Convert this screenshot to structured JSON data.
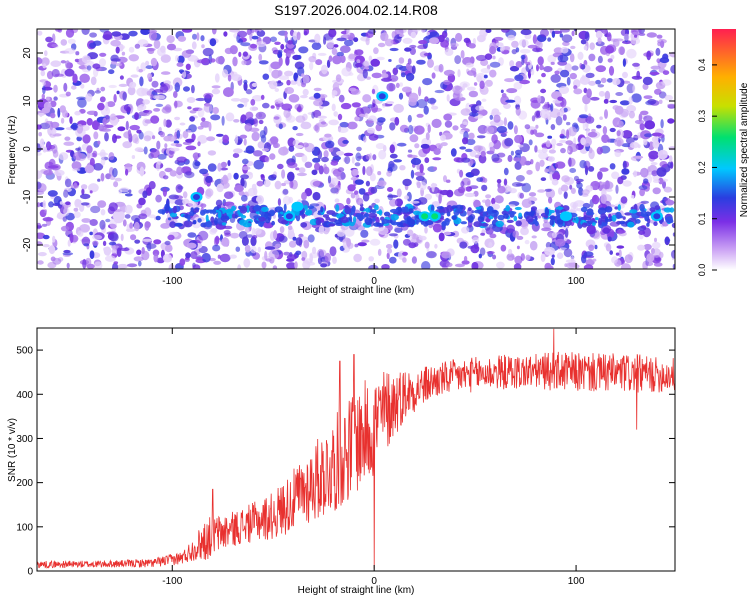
{
  "figure_title": "S197.2026.004.02.14.R08",
  "colors": {
    "snr_line": "#e8312f",
    "axis": "#000000"
  },
  "chart_data": [
    {
      "type": "heatmap",
      "name": "spectrogram",
      "title": "S197.2026.004.02.14.R08",
      "xlabel": "Height of straight line (km)",
      "ylabel": "Frequency (Hz)",
      "xlim": [
        -167,
        149
      ],
      "ylim": [
        -25,
        25
      ],
      "xticks": [
        -100,
        0,
        100
      ],
      "xtick_labels": [
        "-100",
        "0",
        "100"
      ],
      "yticks": [
        20,
        10,
        0,
        -10,
        -20
      ],
      "ytick_labels": [
        "20",
        "10",
        "0",
        "-10",
        "-20"
      ],
      "colorbar": {
        "label": "Normalized spectral amplitude",
        "range": [
          0,
          0.47
        ],
        "ticks": [
          0,
          0.1,
          0.2,
          0.3,
          0.4
        ],
        "tick_labels": [
          "0.0",
          "0.1",
          "0.2",
          "0.3",
          "0.4"
        ],
        "colormap": [
          "#ffffff",
          "#7b2fe6",
          "#2a3ee0",
          "#00c8ff",
          "#00e070",
          "#c8e000",
          "#ffb000",
          "#ff2050"
        ]
      },
      "signal_band_hz": -14,
      "hotspots": [
        {
          "x": -38,
          "y": -12,
          "value": 0.22
        },
        {
          "x": -42,
          "y": -14,
          "value": 0.12
        },
        {
          "x": 25,
          "y": -14,
          "value": 0.26
        },
        {
          "x": 30,
          "y": -14,
          "value": 0.28
        },
        {
          "x": 95,
          "y": -14,
          "value": 0.2
        },
        {
          "x": 140,
          "y": -14,
          "value": 0.14
        },
        {
          "x": -88,
          "y": -10,
          "value": 0.12
        },
        {
          "x": 4,
          "y": 11,
          "value": 0.14
        }
      ]
    },
    {
      "type": "line",
      "name": "snr",
      "xlabel": "Height of straight line (km)",
      "ylabel": "SNR (10 * v/v)",
      "xlim": [
        -167,
        149
      ],
      "ylim": [
        0,
        550
      ],
      "xticks": [
        -100,
        0,
        100
      ],
      "xtick_labels": [
        "-100",
        "0",
        "100"
      ],
      "yticks": [
        0,
        100,
        200,
        300,
        400,
        500
      ],
      "ytick_labels": [
        "0",
        "100",
        "200",
        "300",
        "400",
        "500"
      ],
      "series": [
        {
          "name": "SNR",
          "x": [
            -167,
            -150,
            -130,
            -110,
            -95,
            -88,
            -84,
            -80,
            -70,
            -60,
            -50,
            -40,
            -30,
            -20,
            -10,
            0,
            5,
            10,
            15,
            20,
            25,
            30,
            40,
            50,
            60,
            70,
            80,
            90,
            100,
            110,
            120,
            130,
            140,
            149
          ],
          "mean": [
            15,
            15,
            16,
            18,
            30,
            55,
            70,
            80,
            95,
            110,
            125,
            160,
            200,
            240,
            290,
            330,
            360,
            380,
            400,
            410,
            420,
            430,
            440,
            445,
            450,
            450,
            452,
            452,
            450,
            448,
            448,
            446,
            444,
            444
          ],
          "spread": [
            8,
            8,
            8,
            10,
            15,
            30,
            50,
            45,
            40,
            45,
            55,
            70,
            90,
            110,
            120,
            120,
            100,
            80,
            60,
            50,
            45,
            40,
            40,
            40,
            40,
            40,
            40,
            45,
            45,
            45,
            45,
            45,
            40,
            40
          ]
        }
      ],
      "peaks": [
        {
          "x": -80,
          "y": 185
        },
        {
          "x": -17,
          "y": 475
        },
        {
          "x": -10,
          "y": 490
        },
        {
          "x": 89,
          "y": 548
        },
        {
          "x": 130,
          "y": 320
        },
        {
          "x": 0,
          "y": 5
        }
      ]
    }
  ]
}
